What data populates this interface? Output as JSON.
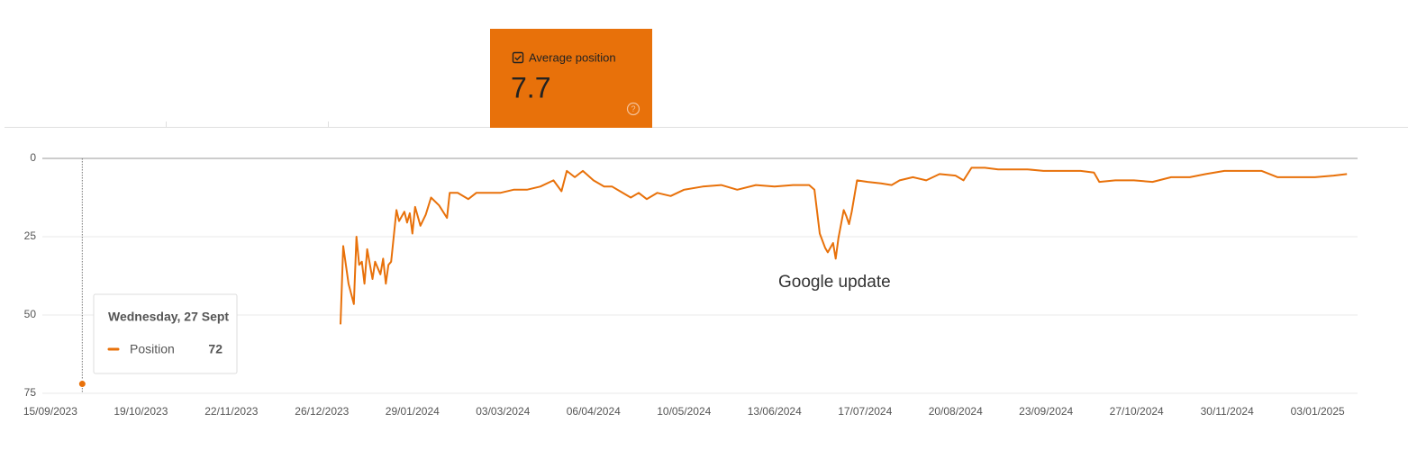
{
  "card": {
    "label": "Average position",
    "value": "7.7"
  },
  "chart_data": {
    "type": "line",
    "annotation": "Google update",
    "tooltip_date": "Wednesday, 27 Sept",
    "x": [
      "27/09/2023",
      "28/09/2023",
      "02/01/2024",
      "03/01/2024",
      "05/01/2024",
      "07/01/2024",
      "08/01/2024",
      "09/01/2024",
      "10/01/2024",
      "11/01/2024",
      "12/01/2024",
      "14/01/2024",
      "15/01/2024",
      "17/01/2024",
      "18/01/2024",
      "19/01/2024",
      "20/01/2024",
      "21/01/2024",
      "23/01/2024",
      "24/01/2024",
      "26/01/2024",
      "27/01/2024",
      "28/01/2024",
      "29/01/2024",
      "30/01/2024",
      "01/02/2024",
      "03/02/2024",
      "05/02/2024",
      "08/02/2024",
      "11/02/2024",
      "12/02/2024",
      "15/02/2024",
      "19/02/2024",
      "22/02/2024",
      "26/02/2024",
      "02/03/2024",
      "07/03/2024",
      "12/03/2024",
      "17/03/2024",
      "22/03/2024",
      "25/03/2024",
      "27/03/2024",
      "30/03/2024",
      "02/04/2024",
      "06/04/2024",
      "10/04/2024",
      "13/04/2024",
      "16/04/2024",
      "20/04/2024",
      "23/04/2024",
      "26/04/2024",
      "30/04/2024",
      "05/05/2024",
      "10/05/2024",
      "17/05/2024",
      "24/05/2024",
      "30/05/2024",
      "06/06/2024",
      "13/06/2024",
      "20/06/2024",
      "26/06/2024",
      "28/06/2024",
      "30/06/2024",
      "02/07/2024",
      "03/07/2024",
      "05/07/2024",
      "06/07/2024",
      "07/07/2024",
      "09/07/2024",
      "10/07/2024",
      "11/07/2024",
      "12/07/2024",
      "14/07/2024",
      "18/07/2024",
      "23/07/2024",
      "27/07/2024",
      "30/07/2024",
      "04/08/2024",
      "09/08/2024",
      "14/08/2024",
      "20/08/2024",
      "23/08/2024",
      "26/08/2024",
      "31/08/2024",
      "05/09/2024",
      "11/09/2024",
      "16/09/2024",
      "22/09/2024",
      "29/09/2024",
      "06/10/2024",
      "11/10/2024",
      "13/10/2024",
      "19/10/2024",
      "26/10/2024",
      "02/11/2024",
      "09/11/2024",
      "16/11/2024",
      "22/11/2024",
      "29/11/2024",
      "06/12/2024",
      "13/12/2024",
      "19/12/2024",
      "26/12/2024",
      "02/01/2025",
      "09/01/2025",
      "14/01/2025"
    ],
    "series": [
      {
        "name": "Position",
        "color": "#e8710a",
        "values": [
          72,
          null,
          53,
          28,
          40,
          46.5,
          25,
          34,
          33,
          40,
          29,
          38.5,
          33,
          37,
          32,
          40,
          34,
          33,
          16.5,
          20,
          17,
          20.5,
          17.5,
          24,
          15.5,
          21.5,
          18,
          12.5,
          15,
          19,
          11,
          11,
          13,
          11,
          11,
          11,
          10,
          10,
          9,
          7,
          10.5,
          4,
          6,
          4,
          7,
          9,
          9,
          10.5,
          12.5,
          11,
          13,
          11,
          12,
          10,
          9,
          8.5,
          10,
          8.5,
          9,
          8.5,
          8.5,
          10,
          24,
          28.5,
          30,
          27,
          32,
          25.5,
          16.5,
          18.5,
          21,
          17,
          7,
          7.5,
          8,
          8.5,
          7,
          6,
          7,
          5,
          5.5,
          7,
          3,
          3,
          3.5,
          3.5,
          3.5,
          4,
          4,
          4,
          4.5,
          7.5,
          7,
          7,
          7.5,
          6,
          6,
          5,
          4,
          4,
          4,
          6,
          6,
          6,
          5.5,
          5
        ]
      }
    ],
    "xlim": [
      "12/09/2023",
      "18/01/2025"
    ],
    "xticks": [
      "15/09/2023",
      "19/10/2023",
      "22/11/2023",
      "26/12/2023",
      "29/01/2024",
      "03/03/2024",
      "06/04/2024",
      "10/05/2024",
      "13/06/2024",
      "17/07/2024",
      "20/08/2024",
      "23/09/2024",
      "27/10/2024",
      "30/11/2024",
      "03/01/2025"
    ],
    "ylim": [
      0,
      75
    ],
    "yticks": [
      0,
      25,
      50,
      75
    ],
    "reversed": true,
    "grid": true
  }
}
